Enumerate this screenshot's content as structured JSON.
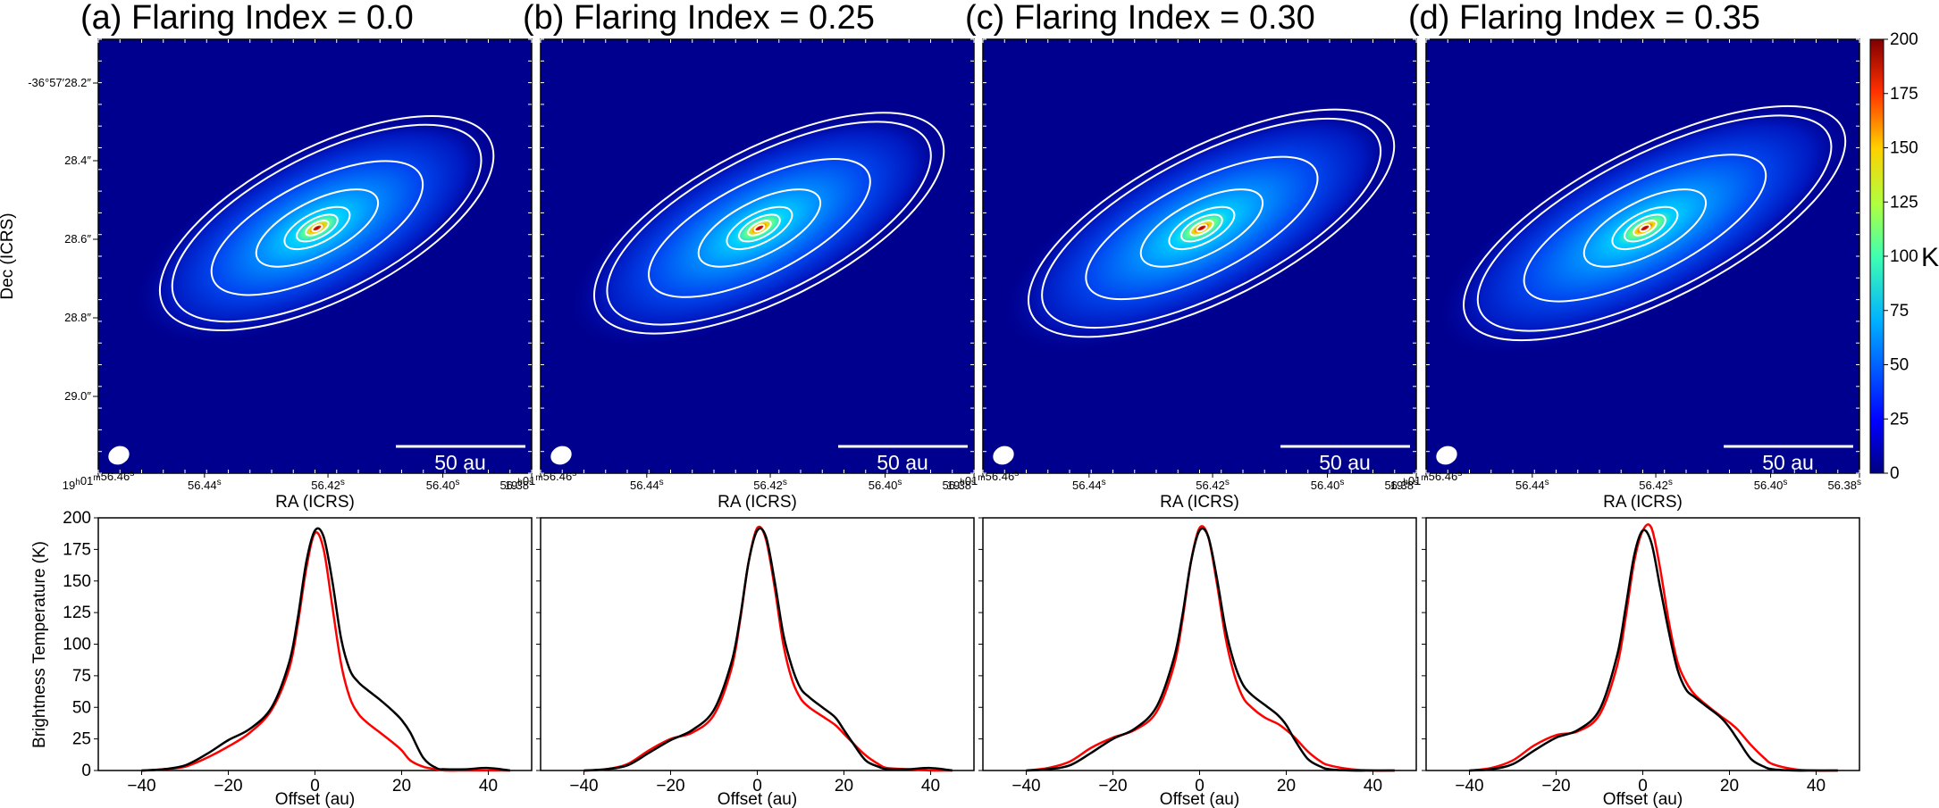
{
  "chart_data": {
    "images": {
      "type": "heatmap",
      "panel_titles": [
        "(a) Flaring Index = 0.0",
        "(b) Flaring Index = 0.25",
        "(c) Flaring Index = 0.30",
        "(d) Flaring Index = 0.35"
      ],
      "xlabel": "RA (ICRS)",
      "ylabel": "Dec (ICRS)",
      "x_tick_labels": [
        "19h01m56.46s",
        "56.44s",
        "56.42s",
        "56.40s",
        "56.38s"
      ],
      "y_tick_labels": [
        "-36°57′28.2″",
        "28.4″",
        "28.6″",
        "28.8″",
        "29.0″"
      ],
      "scale_bar": "50 au",
      "beam": "ellipse",
      "colorbar": {
        "label": "K",
        "range": [
          0,
          200
        ],
        "ticks": [
          0,
          25,
          50,
          75,
          100,
          125,
          150,
          175,
          200
        ],
        "colormap": "jet"
      },
      "contours": "white",
      "peak_K": 190
    },
    "profiles": {
      "type": "line",
      "xlabel": "Offset (au)",
      "ylabel": "Brightness Temperature (K)",
      "xlim": [
        -50,
        50
      ],
      "ylim": [
        0,
        200
      ],
      "x_ticks": [
        -40,
        -20,
        0,
        20,
        40
      ],
      "y_ticks": [
        0,
        25,
        50,
        75,
        100,
        125,
        150,
        175,
        200
      ],
      "series_colors": [
        "#000000",
        "#ff0000"
      ],
      "panels": [
        {
          "black": {
            "x": [
              -40,
              -35,
              -30,
              -25,
              -20,
              -15,
              -10,
              -6,
              -4,
              -2,
              0,
              2,
              4,
              6,
              8,
              10,
              12,
              15,
              18,
              20,
              22,
              25,
              28,
              30,
              35,
              40,
              45
            ],
            "y": [
              0,
              1,
              4,
              13,
              24,
              33,
              50,
              85,
              120,
              165,
              190,
              185,
              150,
              105,
              80,
              70,
              64,
              56,
              47,
              40,
              30,
              10,
              2,
              1,
              1,
              2,
              0
            ]
          },
          "red": {
            "x": [
              -40,
              -35,
              -30,
              -25,
              -20,
              -15,
              -10,
              -6,
              -4,
              -2,
              0,
              2,
              4,
              6,
              8,
              10,
              12,
              15,
              18,
              20,
              22,
              25,
              28,
              30,
              35,
              40,
              45
            ],
            "y": [
              0,
              1,
              3,
              10,
              19,
              30,
              48,
              80,
              115,
              160,
              188,
              175,
              130,
              85,
              58,
              45,
              38,
              30,
              22,
              16,
              8,
              3,
              1,
              0,
              0,
              0,
              0
            ]
          }
        },
        {
          "black": {
            "x": [
              -40,
              -35,
              -30,
              -25,
              -20,
              -15,
              -10,
              -6,
              -4,
              -2,
              0,
              2,
              4,
              6,
              8,
              10,
              12,
              15,
              18,
              20,
              22,
              25,
              28,
              30,
              35,
              40,
              45
            ],
            "y": [
              0,
              1,
              4,
              14,
              24,
              32,
              48,
              85,
              120,
              165,
              190,
              185,
              150,
              108,
              82,
              65,
              58,
              50,
              42,
              32,
              22,
              8,
              3,
              1,
              1,
              2,
              0
            ]
          },
          "red": {
            "x": [
              -40,
              -35,
              -30,
              -25,
              -20,
              -15,
              -10,
              -6,
              -4,
              -2,
              0,
              2,
              4,
              6,
              8,
              10,
              12,
              15,
              18,
              20,
              22,
              25,
              28,
              30,
              35,
              40,
              45
            ],
            "y": [
              0,
              1,
              5,
              16,
              25,
              30,
              44,
              80,
              118,
              165,
              192,
              183,
              145,
              100,
              72,
              57,
              50,
              43,
              36,
              29,
              22,
              12,
              5,
              2,
              1,
              0,
              0
            ]
          }
        },
        {
          "black": {
            "x": [
              -40,
              -35,
              -30,
              -25,
              -20,
              -15,
              -10,
              -6,
              -4,
              -2,
              0,
              2,
              4,
              6,
              8,
              10,
              12,
              15,
              18,
              20,
              22,
              25,
              28,
              30,
              35,
              40,
              45
            ],
            "y": [
              0,
              1,
              4,
              14,
              25,
              33,
              50,
              88,
              122,
              165,
              190,
              185,
              152,
              112,
              85,
              68,
              60,
              52,
              44,
              36,
              24,
              9,
              3,
              1,
              0,
              0,
              0
            ]
          },
          "red": {
            "x": [
              -40,
              -35,
              -30,
              -25,
              -20,
              -15,
              -10,
              -6,
              -4,
              -2,
              0,
              2,
              4,
              6,
              8,
              10,
              12,
              15,
              18,
              20,
              22,
              25,
              28,
              30,
              35,
              40,
              45
            ],
            "y": [
              0,
              2,
              7,
              18,
              26,
              32,
              46,
              82,
              118,
              165,
              192,
              185,
              148,
              105,
              76,
              58,
              50,
              42,
              37,
              32,
              26,
              15,
              7,
              4,
              1,
              0,
              0
            ]
          }
        },
        {
          "black": {
            "x": [
              -40,
              -35,
              -30,
              -25,
              -20,
              -15,
              -10,
              -6,
              -4,
              -2,
              0,
              2,
              4,
              6,
              8,
              10,
              12,
              15,
              18,
              20,
              22,
              25,
              28,
              30,
              35,
              40,
              45
            ],
            "y": [
              0,
              1,
              5,
              16,
              26,
              32,
              48,
              90,
              128,
              170,
              190,
              180,
              145,
              110,
              80,
              64,
              58,
              50,
              42,
              34,
              24,
              9,
              3,
              1,
              0,
              0,
              0
            ]
          },
          "red": {
            "x": [
              -40,
              -35,
              -30,
              -25,
              -20,
              -15,
              -10,
              -6,
              -4,
              -2,
              0,
              2,
              4,
              6,
              8,
              10,
              12,
              15,
              18,
              20,
              22,
              25,
              28,
              30,
              35,
              40,
              45
            ],
            "y": [
              0,
              2,
              8,
              20,
              28,
              31,
              44,
              82,
              120,
              165,
              190,
              192,
              160,
              118,
              86,
              70,
              60,
              51,
              43,
              38,
              32,
              20,
              10,
              5,
              1,
              0,
              0
            ]
          }
        }
      ]
    }
  }
}
